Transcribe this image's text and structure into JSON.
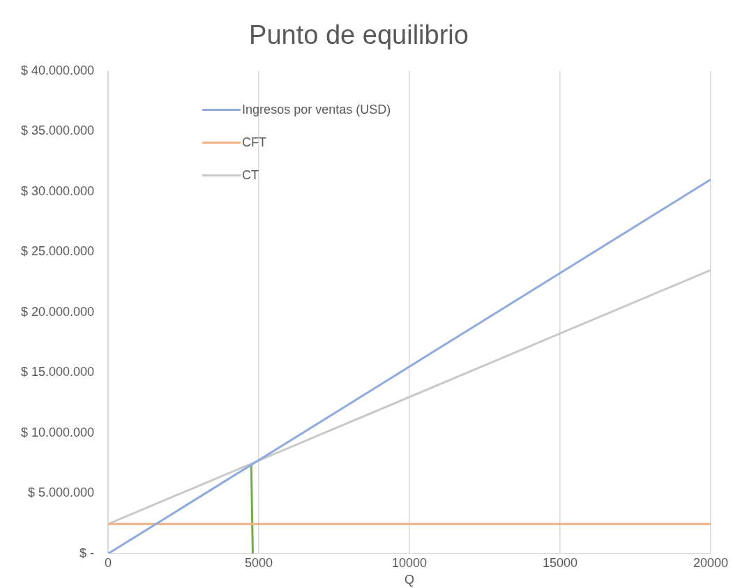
{
  "chart_data": {
    "type": "line",
    "title": "Punto de equilibrio",
    "xlabel": "Q",
    "xlim": [
      0,
      20000
    ],
    "xticks": [
      0,
      5000,
      10000,
      15000,
      20000
    ],
    "ylim": [
      0,
      40000000
    ],
    "yticks": [
      {
        "value": 0,
        "label": "$ -"
      },
      {
        "value": 5000000,
        "label": "$ 5.000.000"
      },
      {
        "value": 10000000,
        "label": "$ 10.000.000"
      },
      {
        "value": 15000000,
        "label": "$ 15.000.000"
      },
      {
        "value": 20000000,
        "label": "$ 20.000.000"
      },
      {
        "value": 25000000,
        "label": "$ 25.000.000"
      },
      {
        "value": 30000000,
        "label": "$ 30.000.000"
      },
      {
        "value": 35000000,
        "label": "$ 35.000.000"
      },
      {
        "value": 40000000,
        "label": "$ 40.000.000"
      }
    ],
    "grid": "x",
    "legend": "top left",
    "marker": "none",
    "series": [
      {
        "name": "Ingresos por ventas (USD)",
        "color": "#8faadc",
        "x": [
          0,
          20000
        ],
        "values": [
          0,
          31000000
        ]
      },
      {
        "name": "CFT",
        "color": "#f4b183",
        "x": [
          0,
          20000
        ],
        "values": [
          2460000,
          2460000
        ]
      },
      {
        "name": "CT",
        "color": "#c9c9c9",
        "x": [
          0,
          20000
        ],
        "values": [
          2460000,
          23500000
        ]
      },
      {
        "color": "#70ad47",
        "x": [
          4750,
          4800
        ],
        "values": [
          7300000,
          0
        ]
      }
    ]
  }
}
